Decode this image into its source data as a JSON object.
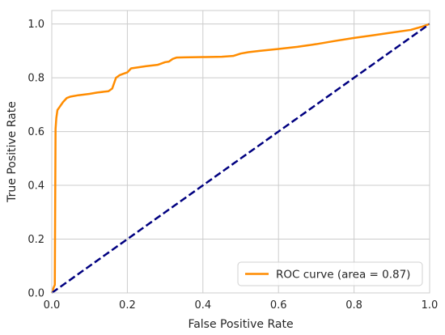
{
  "chart_data": {
    "type": "line",
    "title": "",
    "xlabel": "False Positive Rate",
    "ylabel": "True Positive Rate",
    "xlim": [
      0.0,
      1.0
    ],
    "ylim": [
      0.0,
      1.05
    ],
    "xticks": [
      0.0,
      0.2,
      0.4,
      0.6,
      0.8,
      1.0
    ],
    "yticks": [
      0.0,
      0.2,
      0.4,
      0.6,
      0.8,
      1.0
    ],
    "xtick_labels": [
      "0.0",
      "0.2",
      "0.4",
      "0.6",
      "0.8",
      "1.0"
    ],
    "ytick_labels": [
      "0.0",
      "0.2",
      "0.4",
      "0.6",
      "0.8",
      "1.0"
    ],
    "grid": true,
    "legend_position": "lower-right",
    "series": [
      {
        "name": "ROC curve (area = 0.87)",
        "color": "#ff8c00",
        "line_style": "solid",
        "x": [
          0.0,
          0.005,
          0.008,
          0.01,
          0.012,
          0.015,
          0.02,
          0.03,
          0.04,
          0.05,
          0.07,
          0.1,
          0.12,
          0.15,
          0.16,
          0.17,
          0.18,
          0.19,
          0.2,
          0.21,
          0.25,
          0.28,
          0.3,
          0.31,
          0.32,
          0.33,
          0.35,
          0.4,
          0.45,
          0.48,
          0.5,
          0.52,
          0.55,
          0.6,
          0.65,
          0.7,
          0.75,
          0.8,
          0.85,
          0.9,
          0.95,
          0.98,
          1.0
        ],
        "y": [
          0.0,
          0.02,
          0.03,
          0.61,
          0.65,
          0.68,
          0.69,
          0.71,
          0.725,
          0.73,
          0.735,
          0.74,
          0.745,
          0.75,
          0.76,
          0.8,
          0.81,
          0.815,
          0.82,
          0.835,
          0.843,
          0.848,
          0.858,
          0.86,
          0.87,
          0.875,
          0.876,
          0.877,
          0.878,
          0.881,
          0.89,
          0.895,
          0.9,
          0.907,
          0.915,
          0.925,
          0.937,
          0.948,
          0.958,
          0.968,
          0.978,
          0.99,
          1.0
        ]
      },
      {
        "name": "",
        "color": "#000080",
        "line_style": "dashed",
        "x": [
          0.0,
          1.0
        ],
        "y": [
          0.0,
          1.0
        ]
      }
    ]
  }
}
